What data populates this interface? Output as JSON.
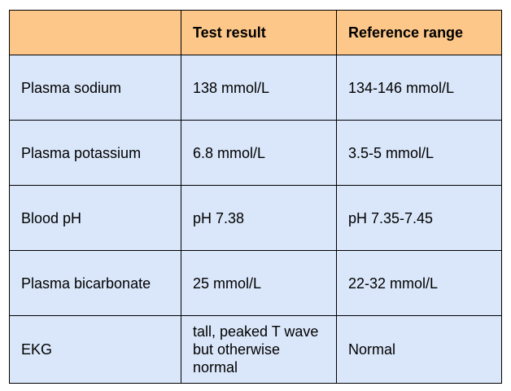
{
  "table": {
    "headers": [
      "",
      "Test result",
      "Reference range"
    ],
    "rows": [
      {
        "test": "Plasma sodium",
        "result": "138 mmol/L",
        "reference": "134-146 mmol/L"
      },
      {
        "test": "Plasma potassium",
        "result": "6.8 mmol/L",
        "reference": "3.5-5 mmol/L"
      },
      {
        "test": "Blood pH",
        "result": "pH 7.38",
        "reference": "pH 7.35-7.45"
      },
      {
        "test": "Plasma bicarbonate",
        "result": "25 mmol/L",
        "reference": "22-32 mmol/L"
      },
      {
        "test": "EKG",
        "result": "tall, peaked T wave but otherwise normal",
        "reference": "Normal"
      }
    ]
  },
  "colors": {
    "header_bg": "#fdc78a",
    "cell_bg": "#dae7fa",
    "border": "#000000"
  }
}
